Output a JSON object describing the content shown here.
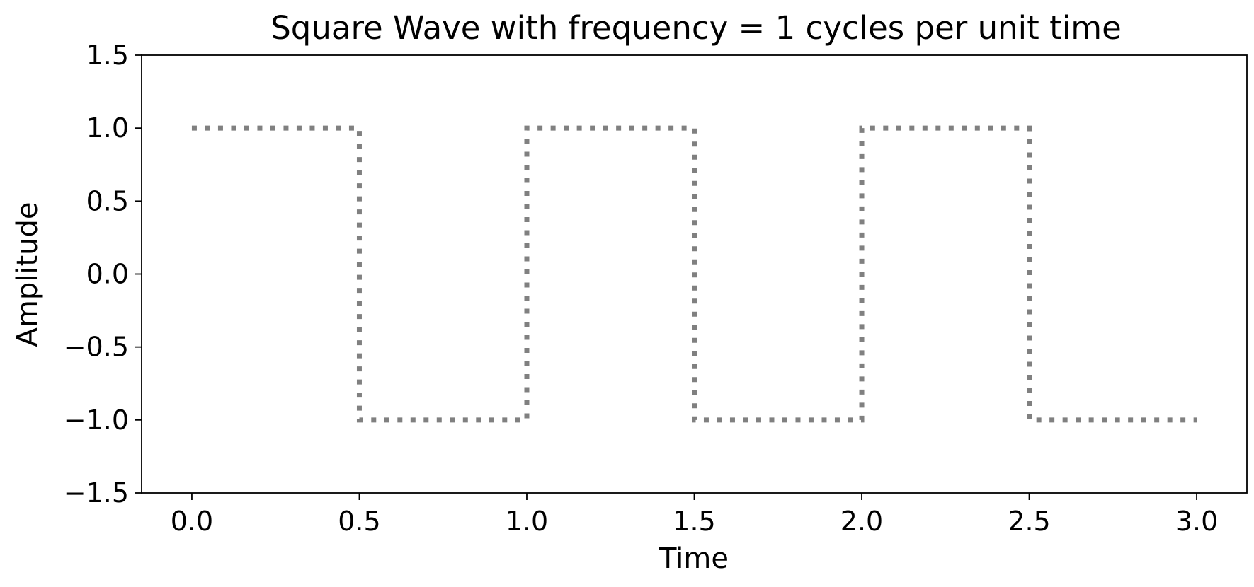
{
  "chart_data": {
    "type": "line",
    "title": "Square Wave with frequency = 1 cycles per unit time",
    "xlabel": "Time",
    "ylabel": "Amplitude",
    "xlim": [
      -0.15,
      3.15
    ],
    "ylim": [
      -1.5,
      1.5
    ],
    "xticks": [
      0.0,
      0.5,
      1.0,
      1.5,
      2.0,
      2.5,
      3.0
    ],
    "xtick_labels": [
      "0.0",
      "0.5",
      "1.0",
      "1.5",
      "2.0",
      "2.5",
      "3.0"
    ],
    "yticks": [
      -1.5,
      -1.0,
      -0.5,
      0.0,
      0.5,
      1.0,
      1.5
    ],
    "ytick_labels": [
      "−1.5",
      "−1.0",
      "−0.5",
      "0.0",
      "0.5",
      "1.0",
      "1.5"
    ],
    "grid": false,
    "legend": "none",
    "line_style": "dotted",
    "series": [
      {
        "color": "#808080",
        "x": [
          0.0,
          0.5,
          0.5,
          1.0,
          1.0,
          1.5,
          1.5,
          2.0,
          2.0,
          2.5,
          2.5,
          3.0
        ],
        "y": [
          1,
          1,
          -1,
          -1,
          1,
          1,
          -1,
          -1,
          1,
          1,
          -1,
          -1
        ]
      }
    ]
  }
}
